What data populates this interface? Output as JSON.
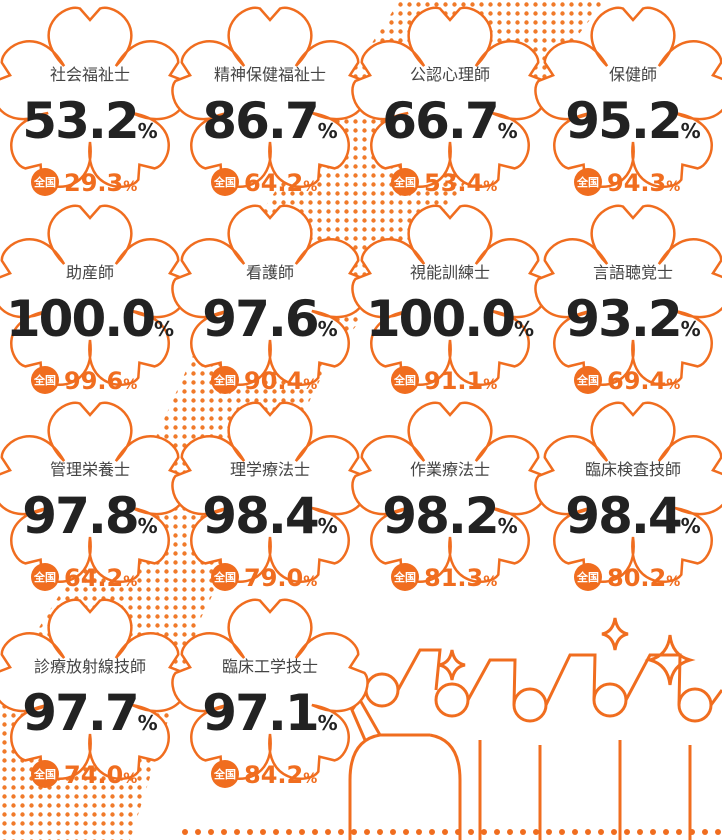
{
  "national_label": "全国",
  "unit": "%",
  "items": [
    {
      "name": "社会福祉士",
      "rate": "53.2",
      "national": "29.3"
    },
    {
      "name": "精神保健福祉士",
      "rate": "86.7",
      "national": "64.2"
    },
    {
      "name": "公認心理師",
      "rate": "66.7",
      "national": "53.4"
    },
    {
      "name": "保健師",
      "rate": "95.2",
      "national": "94.3"
    },
    {
      "name": "助産師",
      "rate": "100.0",
      "national": "99.6"
    },
    {
      "name": "看護師",
      "rate": "97.6",
      "national": "90.4"
    },
    {
      "name": "視能訓練士",
      "rate": "100.0",
      "national": "91.1"
    },
    {
      "name": "言語聴覚士",
      "rate": "93.2",
      "national": "69.4"
    },
    {
      "name": "管理栄養士",
      "rate": "97.8",
      "national": "64.2"
    },
    {
      "name": "理学療法士",
      "rate": "98.4",
      "national": "79.0"
    },
    {
      "name": "作業療法士",
      "rate": "98.2",
      "national": "81.3"
    },
    {
      "name": "臨床検査技師",
      "rate": "98.4",
      "national": "80.2"
    },
    {
      "name": "診療放射線技師",
      "rate": "97.7",
      "national": "74.0"
    },
    {
      "name": "臨床工学技士",
      "rate": "97.1",
      "national": "84.2"
    }
  ]
}
